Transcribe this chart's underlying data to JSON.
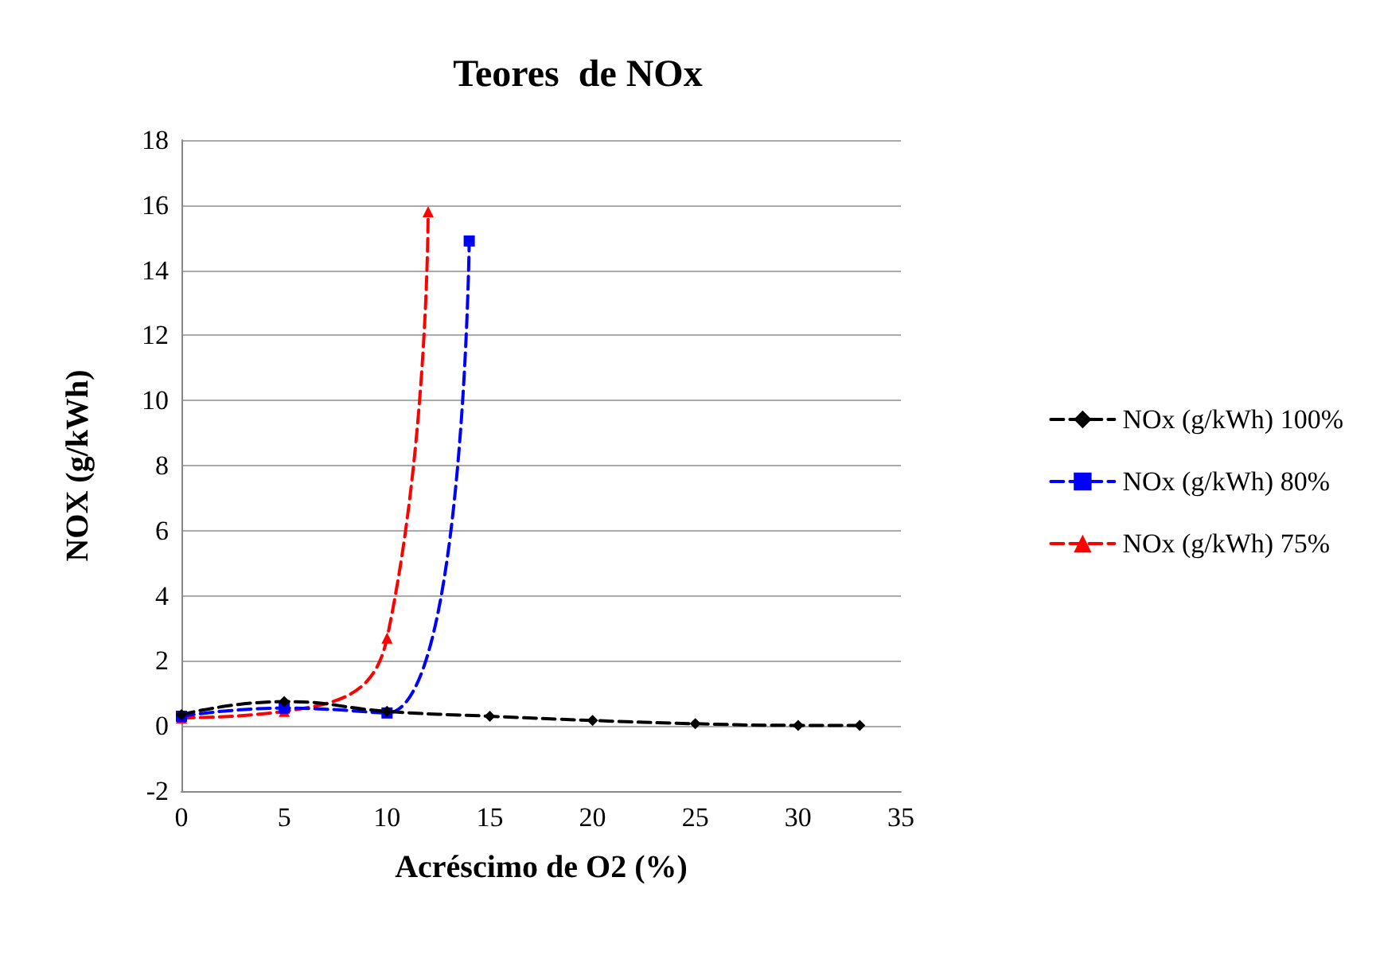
{
  "chart_data": {
    "type": "line",
    "title": "Teores  de NOx",
    "xlabel": "Acréscimo de O2 (%)",
    "ylabel": "NOX (g/kWh)",
    "xlim": [
      0,
      35
    ],
    "xticks": [
      0,
      5,
      10,
      15,
      20,
      25,
      30,
      35
    ],
    "ylim": [
      -2,
      18
    ],
    "yticks": [
      -2,
      0,
      2,
      4,
      6,
      8,
      10,
      12,
      14,
      16,
      18
    ],
    "grid": "y",
    "legend": "right",
    "line_style": "dashed",
    "series": [
      {
        "name": "NOx (g/kWh) 100%",
        "color": "#000000",
        "marker": "diamond",
        "x": [
          0,
          5,
          10,
          15,
          20,
          25,
          30,
          33
        ],
        "values": [
          0.35,
          0.75,
          0.45,
          0.3,
          0.17,
          0.07,
          0.02,
          0.02
        ]
      },
      {
        "name": "NOx (g/kWh) 80%",
        "color": "#0000ff",
        "marker": "square",
        "x": [
          0,
          5,
          10,
          14
        ],
        "values": [
          0.3,
          0.55,
          0.4,
          14.9
        ]
      },
      {
        "name": "NOx (g/kWh) 75%",
        "color": "#ff0000",
        "marker": "triangle",
        "x": [
          0,
          5,
          10,
          12
        ],
        "values": [
          0.25,
          0.45,
          2.7,
          15.8
        ]
      }
    ]
  }
}
